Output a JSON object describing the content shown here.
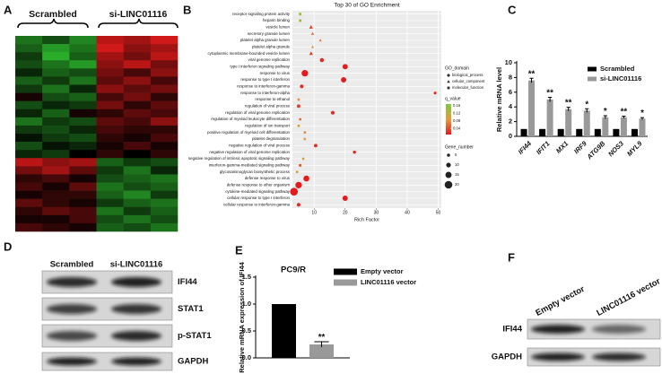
{
  "panel_labels": [
    "A",
    "B",
    "C",
    "D",
    "E",
    "F"
  ],
  "chart_data": [
    {
      "type": "heatmap",
      "groups": [
        "Scrambled",
        "si-LINC01116"
      ],
      "low_color": "#2fc02f",
      "mid_color": "#000000",
      "high_color": "#e81c1c",
      "values": [
        [
          -0.6,
          -0.4,
          -0.7,
          0.8,
          0.7,
          0.9
        ],
        [
          -0.5,
          -0.8,
          -0.6,
          0.9,
          0.6,
          0.7
        ],
        [
          -0.3,
          -0.9,
          -0.5,
          0.7,
          0.5,
          0.8
        ],
        [
          -0.4,
          -0.6,
          -0.8,
          0.6,
          0.8,
          0.5
        ],
        [
          -0.2,
          -0.5,
          -0.4,
          0.5,
          0.3,
          0.6
        ],
        [
          -0.5,
          -0.3,
          -0.6,
          0.4,
          0.6,
          0.3
        ],
        [
          -0.3,
          -0.6,
          -0.2,
          0.6,
          0.4,
          0.5
        ],
        [
          0.1,
          -0.4,
          -0.5,
          0.3,
          0.5,
          0.2
        ],
        [
          -0.4,
          -0.2,
          -0.3,
          0.5,
          0.2,
          0.4
        ],
        [
          -0.2,
          -0.5,
          0.1,
          0.2,
          0.4,
          0.3
        ],
        [
          -0.6,
          -0.3,
          -0.4,
          0.4,
          0.3,
          0.6
        ],
        [
          -0.3,
          -0.4,
          -0.2,
          0.3,
          0.2,
          0.2
        ],
        [
          -0.1,
          -0.3,
          -0.4,
          0.2,
          0.1,
          0.3
        ],
        [
          -0.4,
          -0.1,
          -0.2,
          0.1,
          0.3,
          0.1
        ],
        [
          -0.2,
          -0.3,
          0.0,
          0.2,
          0.0,
          0.2
        ],
        [
          0.8,
          0.6,
          0.7,
          -0.5,
          -0.3,
          -0.4
        ],
        [
          0.5,
          0.7,
          0.4,
          -0.3,
          -0.6,
          -0.2
        ],
        [
          0.2,
          0.3,
          0.1,
          -0.4,
          -0.5,
          -0.6
        ],
        [
          0.3,
          0.1,
          0.4,
          -0.6,
          -0.4,
          -0.5
        ],
        [
          0.1,
          0.2,
          0.2,
          -0.5,
          -0.7,
          -0.3
        ],
        [
          0.4,
          0.2,
          0.1,
          -0.3,
          -0.5,
          -0.6
        ],
        [
          0.2,
          0.4,
          0.3,
          -0.6,
          -0.3,
          -0.5
        ],
        [
          0.1,
          0.1,
          0.3,
          -0.4,
          -0.6,
          -0.4
        ],
        [
          0.3,
          0.2,
          0.1,
          -0.5,
          -0.4,
          -0.6
        ]
      ]
    },
    {
      "type": "dotplot",
      "title": "Top 30 of GO Enrichment",
      "x_label": "Rich Factor",
      "categories": [
        "receptor signaling protein activity",
        "heparin binding",
        "vesicle lumen",
        "secretory granule lumen",
        "platelet alpha granule lumen",
        "platelet alpha granule",
        "cytoplasmic membrane-bounded vesicle lumen",
        "viral genome replication",
        "type I interferon signaling pathway",
        "response to virus",
        "response to type I interferon",
        "response to interferon-gamma",
        "response to interferon-alpha",
        "response to ethanol",
        "regulation of viral process",
        "regulation of viral genome replication",
        "regulation of myeloid leukocyte differentiation",
        "regulation of ion transport",
        "positive regulation of myeloid cell differentiation",
        "platelet degranulation",
        "negative regulation of viral process",
        "negative regulation of viral genome replication",
        "negative regulation of intrinsic apoptotic signaling pathway",
        "interferon-gamma-mediated signaling pathway",
        "glycosaminoglycan biosynthetic process",
        "defense response to virus",
        "defense response to other organism",
        "cytokine-mediated signaling pathway",
        "cellular response to type I interferon",
        "cellular response to interferon-gamma"
      ],
      "values": [
        5.5,
        5.5,
        9,
        9.5,
        12,
        9.5,
        9,
        12.5,
        20,
        7,
        19.5,
        6,
        49,
        5,
        5,
        16,
        5.5,
        5,
        7,
        7,
        10.5,
        23,
        6.5,
        5.5,
        4.5,
        7.5,
        5,
        3.5,
        20,
        5
      ],
      "gene_number": [
        4,
        4,
        6,
        4,
        3,
        3,
        6,
        8,
        12,
        16,
        12,
        7,
        4,
        3,
        6,
        7,
        3,
        3,
        3,
        3,
        6,
        5,
        3,
        4,
        3,
        14,
        16,
        20,
        12,
        7
      ],
      "q_value": [
        0.15,
        0.14,
        0.03,
        0.06,
        0.07,
        0.08,
        0.03,
        0.02,
        0.01,
        0.01,
        0.01,
        0.02,
        0.02,
        0.08,
        0.03,
        0.02,
        0.06,
        0.1,
        0.08,
        0.09,
        0.02,
        0.02,
        0.1,
        0.05,
        0.11,
        0.01,
        0.01,
        0.01,
        0.01,
        0.02
      ],
      "domain": [
        "molecular_function",
        "molecular_function",
        "cellular_component",
        "cellular_component",
        "cellular_component",
        "cellular_component",
        "cellular_component",
        "biological_process",
        "biological_process",
        "biological_process",
        "biological_process",
        "biological_process",
        "biological_process",
        "biological_process",
        "biological_process",
        "biological_process",
        "biological_process",
        "biological_process",
        "biological_process",
        "biological_process",
        "biological_process",
        "biological_process",
        "biological_process",
        "biological_process",
        "biological_process",
        "biological_process",
        "biological_process",
        "biological_process",
        "biological_process",
        "biological_process"
      ],
      "xlim": [
        3,
        51
      ],
      "xticks": [
        10,
        20,
        30,
        40,
        50
      ],
      "grid": true,
      "domain_title": "GO_domain",
      "domains": [
        "biological_process",
        "cellular_component",
        "molecular_function"
      ],
      "q_title": "q_value",
      "qlim": [
        0.01,
        0.17
      ],
      "qticks": [
        0.16,
        0.12,
        0.08,
        0.04
      ],
      "q_colors": [
        "#e41a1c",
        "#e89a3a",
        "#7acb3a"
      ],
      "size_title": "Gene_number",
      "size_ticks": [
        5,
        10,
        15,
        20
      ]
    },
    {
      "type": "bar",
      "y_label": "Relative mRNA level",
      "categories": [
        "IFI44",
        "IFIT1",
        "MX1",
        "IRF9",
        "ATG9B",
        "NOS3",
        "MYL9"
      ],
      "series": [
        {
          "name": "Scrambled",
          "color": "#000000",
          "values": [
            1,
            1,
            1,
            1,
            1,
            1,
            1
          ]
        },
        {
          "name": "si-LINC01116",
          "color": "#999999",
          "values": [
            7.6,
            5.0,
            3.7,
            3.5,
            2.6,
            2.6,
            2.4
          ],
          "errors": [
            0.3,
            0.3,
            0.25,
            0.25,
            0.2,
            0.15,
            0.15
          ],
          "significance": [
            "**",
            "**",
            "**",
            "*",
            "*",
            "**",
            "*"
          ]
        }
      ],
      "ylim": [
        0,
        10
      ],
      "yticks": [
        0,
        2,
        4,
        6,
        8,
        10
      ]
    },
    {
      "type": "bar",
      "title": "PC9/R",
      "y_label": "Relative mRNA expression of IFI44",
      "categories": [
        null
      ],
      "series": [
        {
          "name": "Empty vector",
          "color": "#000000",
          "values": [
            1.0
          ]
        },
        {
          "name": "LINC01116 vector",
          "color": "#999999",
          "values": [
            0.25
          ],
          "errors": [
            0.05
          ],
          "significance": [
            "**"
          ]
        }
      ],
      "ylim": [
        0,
        1.5
      ],
      "yticks": [
        {
          "value": 0,
          "label": "0.0"
        },
        0.5,
        {
          "value": 1,
          "label": "1.0"
        },
        1.5
      ]
    }
  ],
  "blots": [
    {
      "lanes": [
        "Scrambled",
        "si-LINC01116"
      ],
      "proteins": [
        "IFI44",
        "STAT1",
        "p-STAT1",
        "GAPDH"
      ]
    },
    {
      "lanes": [
        "Empty vector",
        "LINC01116 vector"
      ],
      "proteins": [
        "IFI44",
        "GAPDH"
      ]
    }
  ]
}
